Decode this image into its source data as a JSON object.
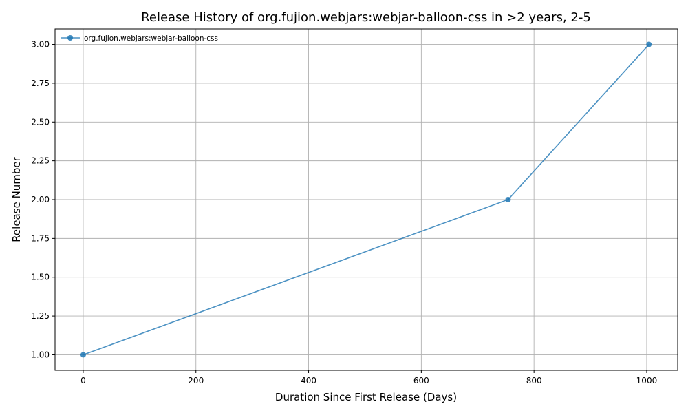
{
  "chart_data": {
    "type": "line",
    "title": "Release History of org.fujion.webjars:webjar-balloon-css in >2 years, 2-5",
    "xlabel": "Duration Since First Release (Days)",
    "ylabel": "Release Number",
    "xlim": [
      -50,
      1055
    ],
    "ylim": [
      0.9,
      3.1
    ],
    "xticks": [
      0,
      200,
      400,
      600,
      800,
      1000
    ],
    "xtick_labels": [
      "0",
      "200",
      "400",
      "600",
      "800",
      "1000"
    ],
    "yticks": [
      1.0,
      1.25,
      1.5,
      1.75,
      2.0,
      2.25,
      2.5,
      2.75,
      3.0
    ],
    "ytick_labels": [
      "1.00",
      "1.25",
      "1.50",
      "1.75",
      "2.00",
      "2.25",
      "2.50",
      "2.75",
      "3.00"
    ],
    "grid": true,
    "legend_position": "top-left",
    "series": [
      {
        "name": "org.fujion.webjars:webjar-balloon-css",
        "color": "#1f77b4",
        "marker": "circle",
        "x": [
          0,
          754,
          1004
        ],
        "y": [
          1,
          2,
          3
        ]
      }
    ]
  }
}
